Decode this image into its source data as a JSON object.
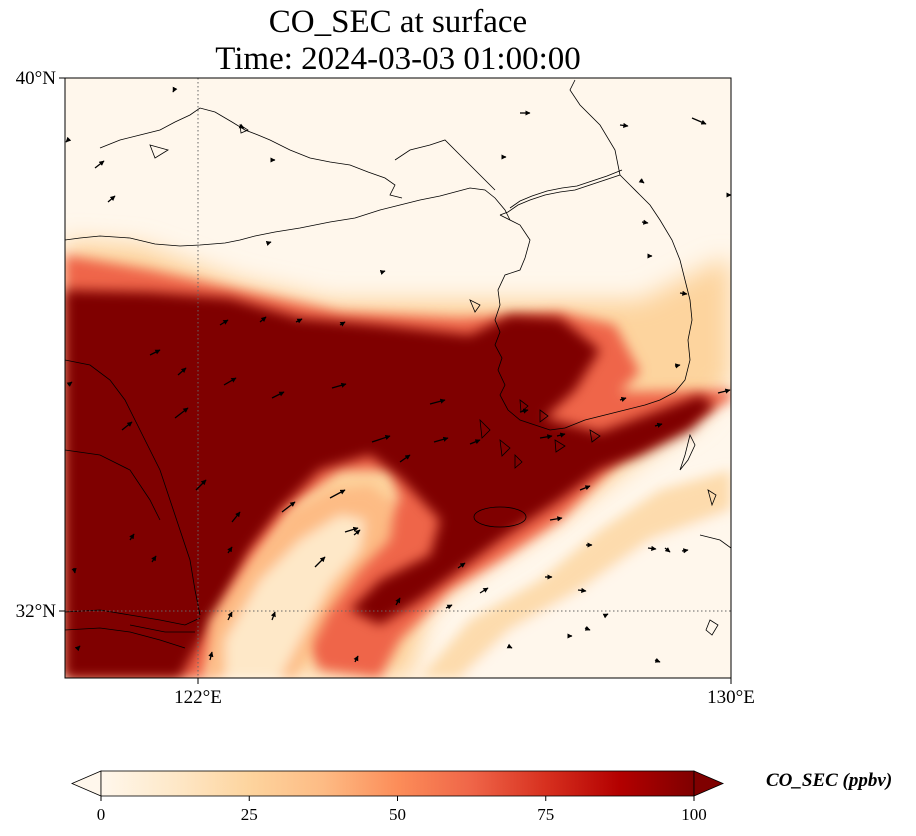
{
  "title": {
    "line1": "CO_SEC at surface",
    "line2": "Time: 2024-03-03 01:00:00"
  },
  "map": {
    "lon_range": [
      120,
      130
    ],
    "lat_range": [
      31,
      40
    ],
    "lat_ticks": [
      {
        "value": 40,
        "label": "40°N"
      },
      {
        "value": 32,
        "label": "32°N"
      }
    ],
    "lon_ticks": [
      {
        "value": 122,
        "label": "122°E"
      },
      {
        "value": 130,
        "label": "130°E"
      }
    ],
    "gridlines": "dotted at 122°E and 32°N",
    "overlays": [
      "coastlines",
      "wind-vectors"
    ]
  },
  "colorbar": {
    "label": "CO_SEC (ppbv)",
    "min": 0,
    "max": 100,
    "ticks": [
      {
        "value": 0,
        "label": "0"
      },
      {
        "value": 25,
        "label": "25"
      },
      {
        "value": 50,
        "label": "50"
      },
      {
        "value": 75,
        "label": "75"
      },
      {
        "value": 100,
        "label": "100"
      }
    ],
    "extend": "both",
    "colormap": "OrRd",
    "colors": [
      "#fff7ec",
      "#fee8c8",
      "#fdd49e",
      "#fdbb84",
      "#fc8d59",
      "#ef6548",
      "#d7301f",
      "#b30000",
      "#7f0000"
    ]
  },
  "colors": {
    "land_outline": "#000000",
    "gridline": "#666666",
    "high_value": "#7f0000",
    "background_value": "#fff7ec"
  }
}
